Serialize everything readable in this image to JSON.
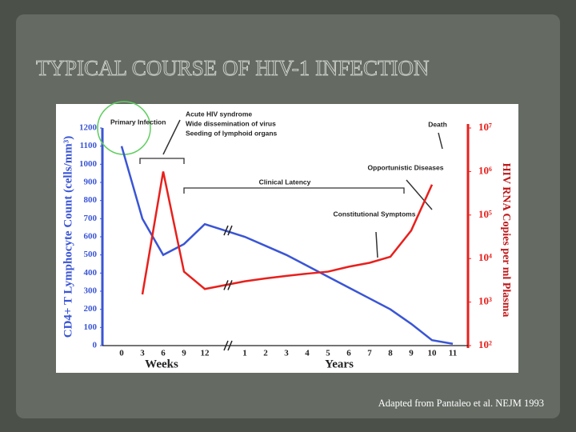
{
  "chart_data": {
    "type": "line",
    "title": "TYPICAL COURSE OF HIV-1 INFECTION",
    "source": "Adapted from Pantaleo et al. NEJM 1993",
    "y_label": "CD4+ T Lymphocyte Count (cells/mm³)",
    "y2_label": "HIV RNA Copies per ml Plasma",
    "x_labels": [
      "Weeks",
      "Years"
    ],
    "annotations": [
      "Primary Infection",
      "Acute HIV syndrome",
      "Wide dissemination of virus",
      "Seeding of lymphoid organs",
      "Clinical Latency",
      "Constitutional Symptoms",
      "Opportunistic Diseases",
      "Death"
    ],
    "categories": [
      "0",
      "3",
      "6",
      "9",
      "12",
      "1",
      "2",
      "3",
      "4",
      "5",
      "6",
      "7",
      "8",
      "9",
      "10",
      "11"
    ],
    "series": [
      {
        "name": "CD4+ T Lymphocyte Count",
        "color": "#3a55d6",
        "values": [
          1100,
          700,
          500,
          560,
          670,
          600,
          550,
          500,
          440,
          380,
          320,
          260,
          200,
          120,
          30,
          10
        ]
      },
      {
        "name": "HIV RNA Copies",
        "color": "#e8201c",
        "axis": "y2",
        "values": [
          null,
          1500,
          1000000,
          5000,
          2000,
          3000,
          3500,
          4000,
          4500,
          5000,
          6500,
          8000,
          11000,
          44000,
          500000,
          null
        ]
      }
    ],
    "ylim": [
      0,
      1200
    ],
    "yticks": [
      0,
      100,
      200,
      300,
      400,
      500,
      600,
      700,
      800,
      900,
      1000,
      1100,
      1200
    ],
    "y2lim": [
      100,
      10000000
    ],
    "y2log": true,
    "y2ticks": [
      {
        "value": 100,
        "label": "10²"
      },
      {
        "value": 1000,
        "label": "10³"
      },
      {
        "value": 10000,
        "label": "10⁴"
      },
      {
        "value": 100000,
        "label": "10⁵"
      },
      {
        "value": 1000000,
        "label": "10⁶"
      },
      {
        "value": 10000000,
        "label": "10⁷"
      }
    ],
    "grid": false
  }
}
